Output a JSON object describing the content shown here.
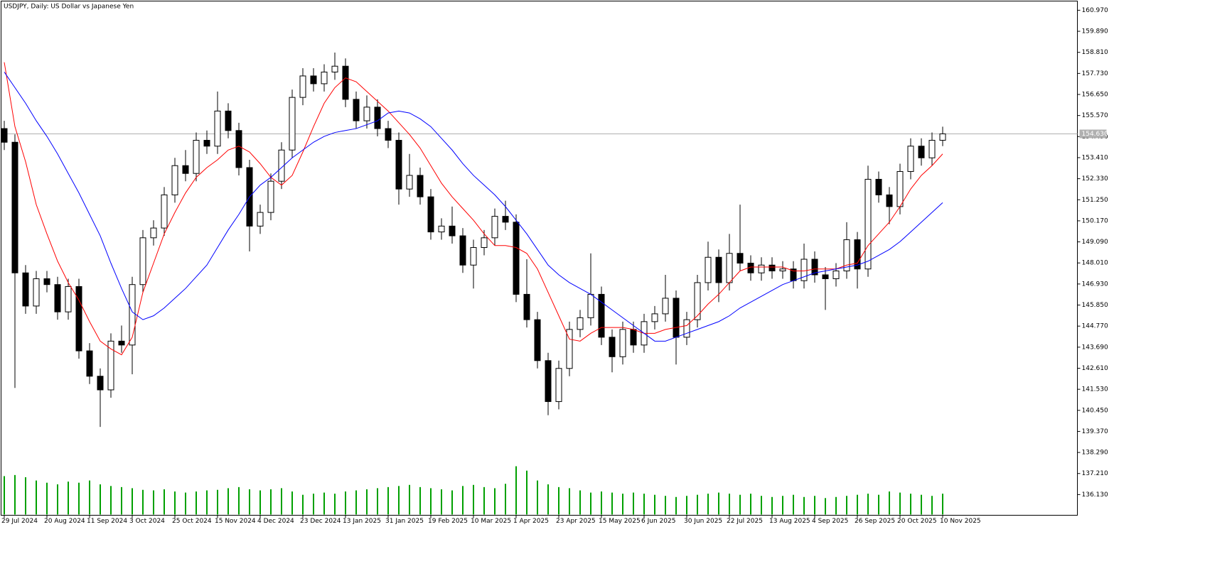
{
  "chart_data": {
    "type": "candlestick",
    "title": "USDJPY, Daily:  US Dollar vs Japanese Yen",
    "categories": [
      "29 Jul 2024",
      null,
      null,
      null,
      "20 Aug 2024",
      null,
      null,
      null,
      "11 Sep 2024",
      null,
      null,
      null,
      "3 Oct 2024",
      null,
      null,
      null,
      "25 Oct 2024",
      null,
      null,
      null,
      "15 Nov 2024",
      null,
      null,
      null,
      "4 Dec 2024",
      null,
      null,
      null,
      "23 Dec 2024",
      null,
      null,
      null,
      "13 Jan 2025",
      null,
      null,
      null,
      "31 Jan 2025",
      null,
      null,
      null,
      "19 Feb 2025",
      null,
      null,
      null,
      "10 Mar 2025",
      null,
      null,
      null,
      "1 Apr 2025",
      null,
      null,
      null,
      "23 Apr 2025",
      null,
      null,
      null,
      "15 May 2025",
      null,
      null,
      null,
      "6 Jun 2025",
      null,
      null,
      null,
      "30 Jun 2025",
      null,
      null,
      null,
      "22 Jul 2025",
      null,
      null,
      null,
      "13 Aug 2025",
      null,
      null,
      null,
      "4 Sep 2025",
      null,
      null,
      null,
      "26 Sep 2025",
      null,
      null,
      null,
      "20 Oct 2025",
      null,
      null,
      null,
      "10 Nov 2025"
    ],
    "candles": {
      "open": [
        154.9,
        154.2,
        147.5,
        145.8,
        147.2,
        146.9,
        145.5,
        146.8,
        143.5,
        142.2,
        141.5,
        144.0,
        143.8,
        146.9,
        149.3,
        149.8,
        151.5,
        153.0,
        152.6,
        154.3,
        154.0,
        155.8,
        154.8,
        152.9,
        149.9,
        150.6,
        152.2,
        153.8,
        156.5,
        157.6,
        157.2,
        157.8,
        158.1,
        156.4,
        155.3,
        156.0,
        154.9,
        154.3,
        151.8,
        152.5,
        151.4,
        149.6,
        149.9,
        149.4,
        147.9,
        148.8,
        149.3,
        150.4,
        150.1,
        146.4,
        145.1,
        143.0,
        140.9,
        142.6,
        144.6,
        145.2,
        146.4,
        144.2,
        143.2,
        144.6,
        143.8,
        145.0,
        145.4,
        146.2,
        144.2,
        145.1,
        147.0,
        148.3,
        147.0,
        148.5,
        148.0,
        147.5,
        147.9,
        147.6,
        147.7,
        147.1,
        148.2,
        147.4,
        147.2,
        147.6,
        149.2,
        147.7,
        152.3,
        151.5,
        150.9,
        152.7,
        154.0,
        153.4,
        154.3
      ],
      "high": [
        155.3,
        154.6,
        147.9,
        147.6,
        147.6,
        147.3,
        147.2,
        147.2,
        143.9,
        142.6,
        144.4,
        144.8,
        147.3,
        149.7,
        150.2,
        151.9,
        153.4,
        153.8,
        154.7,
        154.8,
        156.8,
        156.2,
        155.2,
        153.3,
        151.0,
        152.6,
        154.2,
        156.9,
        158.0,
        158.0,
        158.2,
        158.8,
        158.5,
        156.8,
        156.6,
        156.4,
        155.3,
        154.7,
        153.6,
        152.9,
        151.8,
        150.3,
        150.9,
        149.8,
        149.2,
        149.7,
        150.8,
        151.2,
        150.5,
        148.2,
        145.5,
        143.4,
        143.0,
        145.0,
        145.6,
        148.5,
        146.8,
        144.6,
        145.0,
        145.0,
        145.4,
        145.8,
        147.4,
        146.6,
        145.5,
        147.4,
        149.1,
        148.7,
        149.5,
        151.0,
        148.4,
        148.3,
        148.3,
        148.1,
        148.1,
        149.0,
        148.6,
        147.8,
        148.0,
        150.1,
        149.6,
        153.0,
        152.7,
        151.9,
        153.1,
        154.4,
        154.4,
        154.7,
        155.0
      ],
      "low": [
        153.8,
        141.6,
        145.4,
        145.4,
        146.5,
        145.1,
        145.1,
        143.1,
        141.8,
        139.6,
        141.1,
        143.4,
        142.3,
        146.5,
        148.9,
        149.4,
        151.1,
        152.2,
        152.2,
        153.6,
        153.6,
        154.4,
        152.5,
        148.6,
        149.5,
        150.2,
        151.8,
        153.4,
        156.1,
        156.8,
        156.8,
        157.4,
        156.0,
        154.9,
        154.9,
        154.5,
        153.9,
        151.0,
        151.4,
        151.0,
        149.2,
        149.2,
        149.0,
        147.5,
        146.7,
        148.4,
        148.9,
        149.7,
        146.0,
        144.7,
        142.6,
        140.2,
        140.5,
        142.2,
        144.2,
        144.8,
        143.8,
        142.4,
        142.8,
        143.4,
        143.4,
        144.6,
        145.0,
        142.8,
        143.8,
        144.7,
        146.6,
        146.0,
        146.6,
        147.6,
        147.1,
        147.1,
        147.2,
        147.2,
        146.7,
        146.7,
        147.0,
        145.6,
        146.8,
        147.2,
        146.7,
        147.3,
        151.1,
        150.0,
        150.5,
        152.3,
        153.0,
        153.0,
        154.0
      ],
      "close": [
        154.2,
        147.5,
        145.8,
        147.2,
        146.9,
        145.5,
        146.8,
        143.5,
        142.2,
        141.5,
        144.0,
        143.8,
        146.9,
        149.3,
        149.8,
        151.5,
        153.0,
        152.6,
        154.3,
        154.0,
        155.8,
        154.8,
        152.9,
        149.9,
        150.6,
        152.2,
        153.8,
        156.5,
        157.6,
        157.2,
        157.8,
        158.1,
        156.4,
        155.3,
        156.0,
        154.9,
        154.3,
        151.8,
        152.5,
        151.4,
        149.6,
        149.9,
        149.4,
        147.9,
        148.8,
        149.3,
        150.4,
        150.1,
        146.4,
        145.1,
        143.0,
        140.9,
        142.6,
        144.6,
        145.2,
        146.4,
        144.2,
        143.2,
        144.6,
        143.8,
        145.0,
        145.4,
        146.2,
        144.2,
        145.1,
        147.0,
        148.3,
        147.0,
        148.5,
        148.0,
        147.5,
        147.9,
        147.6,
        147.7,
        147.1,
        148.2,
        147.4,
        147.2,
        147.6,
        149.2,
        147.7,
        152.3,
        151.5,
        150.9,
        152.7,
        154.0,
        153.4,
        154.3,
        154.63
      ]
    },
    "series": [
      {
        "color": "#ff0000",
        "values": [
          158.3,
          155.0,
          153.2,
          151.0,
          149.5,
          148.1,
          147.0,
          146.1,
          145.0,
          144.0,
          143.6,
          143.3,
          144.2,
          146.5,
          148.0,
          149.5,
          150.6,
          151.6,
          152.4,
          152.9,
          153.3,
          153.8,
          154.0,
          153.7,
          153.1,
          152.4,
          152.0,
          152.5,
          153.7,
          155.0,
          156.2,
          157.0,
          157.5,
          157.3,
          156.8,
          156.3,
          155.8,
          155.2,
          154.6,
          153.9,
          153.0,
          152.1,
          151.4,
          150.8,
          150.2,
          149.5,
          148.9,
          148.9,
          148.8,
          148.5,
          147.7,
          146.5,
          145.3,
          144.1,
          144.0,
          144.4,
          144.7,
          144.7,
          144.7,
          144.6,
          144.4,
          144.4,
          144.6,
          144.7,
          144.8,
          145.3,
          145.9,
          146.4,
          147.0,
          147.6,
          147.8,
          147.8,
          147.8,
          147.8,
          147.6,
          147.6,
          147.7,
          147.7,
          147.7,
          147.9,
          148.0,
          148.9,
          149.5,
          150.1,
          150.9,
          151.8,
          152.5,
          153.0,
          153.6
        ]
      },
      {
        "color": "#0000ff",
        "values": [
          157.8,
          157.0,
          156.2,
          155.3,
          154.5,
          153.6,
          152.6,
          151.6,
          150.5,
          149.4,
          148.0,
          146.7,
          145.5,
          145.1,
          145.3,
          145.7,
          146.2,
          146.7,
          147.3,
          147.9,
          148.8,
          149.7,
          150.5,
          151.4,
          152.0,
          152.4,
          152.9,
          153.4,
          153.8,
          154.2,
          154.5,
          154.7,
          154.8,
          154.9,
          155.1,
          155.3,
          155.7,
          155.8,
          155.7,
          155.4,
          155.0,
          154.4,
          153.8,
          153.1,
          152.5,
          152.0,
          151.5,
          150.9,
          150.2,
          149.5,
          148.7,
          147.9,
          147.4,
          147.0,
          146.7,
          146.4,
          146.0,
          145.6,
          145.2,
          144.8,
          144.4,
          144.0,
          144.0,
          144.2,
          144.4,
          144.6,
          144.8,
          145.0,
          145.3,
          145.7,
          146.0,
          146.3,
          146.6,
          146.9,
          147.1,
          147.3,
          147.5,
          147.6,
          147.7,
          147.8,
          147.9,
          148.1,
          148.4,
          148.7,
          149.1,
          149.6,
          150.1,
          150.6,
          151.1
        ]
      }
    ],
    "volume": {
      "color": "#00a000",
      "values": [
        70,
        72,
        68,
        62,
        58,
        55,
        60,
        58,
        62,
        55,
        52,
        50,
        48,
        45,
        44,
        46,
        42,
        40,
        42,
        44,
        45,
        48,
        50,
        46,
        44,
        46,
        48,
        42,
        36,
        38,
        40,
        38,
        42,
        44,
        46,
        48,
        50,
        52,
        54,
        50,
        48,
        46,
        44,
        52,
        54,
        50,
        48,
        56,
        88,
        80,
        62,
        55,
        50,
        48,
        44,
        40,
        42,
        40,
        38,
        40,
        38,
        36,
        34,
        32,
        34,
        36,
        38,
        40,
        38,
        36,
        38,
        34,
        32,
        34,
        36,
        32,
        34,
        30,
        32,
        34,
        36,
        38,
        36,
        42,
        40,
        38,
        36,
        34,
        38
      ]
    },
    "bid_line": {
      "value": 154.63,
      "label": "154.630"
    },
    "ylim": [
      135.07,
      161.44
    ],
    "yticks": [
      {
        "value": 160.97,
        "label": "160.970"
      },
      {
        "value": 159.89,
        "label": "159.890"
      },
      {
        "value": 158.81,
        "label": "158.810"
      },
      {
        "value": 157.73,
        "label": "157.730"
      },
      {
        "value": 156.65,
        "label": "156.650"
      },
      {
        "value": 155.57,
        "label": "155.570"
      },
      {
        "value": 154.49,
        "label": "154.490"
      },
      {
        "value": 153.41,
        "label": "153.410"
      },
      {
        "value": 152.33,
        "label": "152.330"
      },
      {
        "value": 151.25,
        "label": "151.250"
      },
      {
        "value": 150.17,
        "label": "150.170"
      },
      {
        "value": 149.09,
        "label": "149.090"
      },
      {
        "value": 148.01,
        "label": "148.010"
      },
      {
        "value": 146.93,
        "label": "146.930"
      },
      {
        "value": 145.85,
        "label": "145.850"
      },
      {
        "value": 144.77,
        "label": "144.770"
      },
      {
        "value": 143.69,
        "label": "143.690"
      },
      {
        "value": 142.61,
        "label": "142.610"
      },
      {
        "value": 141.53,
        "label": "141.530"
      },
      {
        "value": 140.45,
        "label": "140.450"
      },
      {
        "value": 139.37,
        "label": "139.370"
      },
      {
        "value": 138.29,
        "label": "138.290"
      },
      {
        "value": 137.21,
        "label": "137.210"
      },
      {
        "value": 136.13,
        "label": "136.130"
      }
    ]
  }
}
